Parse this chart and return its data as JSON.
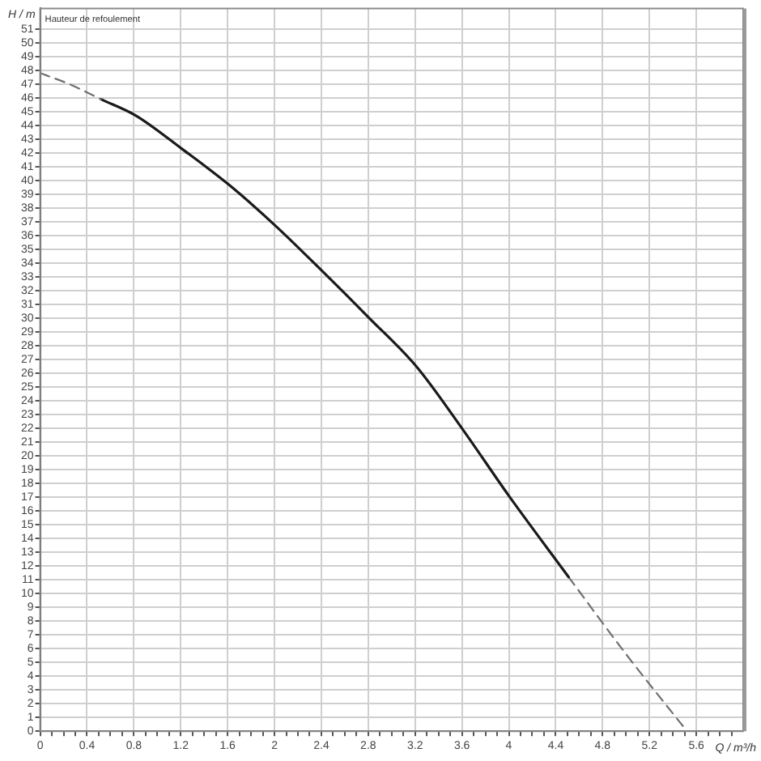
{
  "chart_data": {
    "type": "line",
    "xlabel": "Q / m³/h",
    "ylabel": "H / m",
    "annotations": [
      "Hauteur de refoulement"
    ],
    "series": [
      {
        "color": "#707070",
        "line_style": "dashed",
        "x": [
          0,
          0.25,
          0.52
        ],
        "values": [
          47.8,
          47.0,
          45.9
        ]
      },
      {
        "color": "#1a1a1a",
        "line_style": "solid",
        "x": [
          0.52,
          0.82,
          1.21,
          1.61,
          2.01,
          2.41,
          2.81,
          3.21,
          3.6,
          4.0,
          4.51
        ],
        "values": [
          45.9,
          44.7,
          42.3,
          39.7,
          36.7,
          33.4,
          30.0,
          26.5,
          22.0,
          17.1,
          11.2
        ]
      },
      {
        "color": "#707070",
        "line_style": "dashed",
        "x": [
          4.51,
          5.0,
          5.52
        ],
        "values": [
          11.2,
          5.6,
          0
        ]
      }
    ],
    "xlim": [
      0,
      6
    ],
    "xticks": [
      0,
      {
        "value": 0.1,
        "label": null
      },
      {
        "value": 0.2,
        "label": null
      },
      {
        "value": 0.3,
        "label": null
      },
      0.4,
      {
        "value": 0.5,
        "label": null
      },
      {
        "value": 0.6,
        "label": null
      },
      {
        "value": 0.7,
        "label": null
      },
      0.8,
      {
        "value": 0.9,
        "label": null
      },
      {
        "value": 1.0,
        "label": null
      },
      {
        "value": 1.1,
        "label": null
      },
      1.2,
      {
        "value": 1.3,
        "label": null
      },
      {
        "value": 1.4,
        "label": null
      },
      {
        "value": 1.5,
        "label": null
      },
      1.6,
      {
        "value": 1.7,
        "label": null
      },
      {
        "value": 1.8,
        "label": null
      },
      {
        "value": 1.9,
        "label": null
      },
      2,
      {
        "value": 2.1,
        "label": null
      },
      {
        "value": 2.2,
        "label": null
      },
      {
        "value": 2.3,
        "label": null
      },
      2.4,
      {
        "value": 2.5,
        "label": null
      },
      {
        "value": 2.6,
        "label": null
      },
      {
        "value": 2.7,
        "label": null
      },
      2.8,
      {
        "value": 2.9,
        "label": null
      },
      {
        "value": 3.0,
        "label": null
      },
      {
        "value": 3.1,
        "label": null
      },
      3.2,
      {
        "value": 3.3,
        "label": null
      },
      {
        "value": 3.4,
        "label": null
      },
      {
        "value": 3.5,
        "label": null
      },
      3.6,
      {
        "value": 3.7,
        "label": null
      },
      {
        "value": 3.8,
        "label": null
      },
      {
        "value": 3.9,
        "label": null
      },
      4,
      {
        "value": 4.1,
        "label": null
      },
      {
        "value": 4.2,
        "label": null
      },
      {
        "value": 4.3,
        "label": null
      },
      4.4,
      {
        "value": 4.5,
        "label": null
      },
      {
        "value": 4.6,
        "label": null
      },
      {
        "value": 4.7,
        "label": null
      },
      4.8,
      {
        "value": 4.9,
        "label": null
      },
      {
        "value": 5.0,
        "label": null
      },
      {
        "value": 5.1,
        "label": null
      },
      5.2,
      {
        "value": 5.3,
        "label": null
      },
      {
        "value": 5.4,
        "label": null
      },
      {
        "value": 5.5,
        "label": null
      },
      5.6,
      {
        "value": 5.7,
        "label": null
      },
      {
        "value": 5.8,
        "label": null
      },
      {
        "value": 5.9,
        "label": null
      }
    ],
    "ylim": [
      0,
      52.5
    ],
    "yticks": [
      0,
      1,
      2,
      3,
      4,
      5,
      6,
      7,
      8,
      9,
      10,
      11,
      12,
      13,
      14,
      15,
      16,
      17,
      18,
      19,
      20,
      21,
      22,
      23,
      24,
      25,
      26,
      27,
      28,
      29,
      30,
      31,
      32,
      33,
      34,
      35,
      36,
      37,
      38,
      39,
      40,
      41,
      42,
      43,
      44,
      45,
      46,
      47,
      48,
      49,
      50,
      51
    ],
    "grid": true
  }
}
